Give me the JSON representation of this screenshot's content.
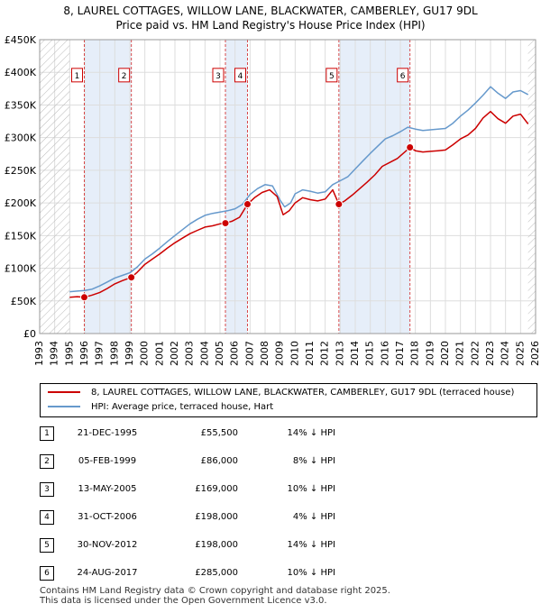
{
  "title": {
    "line1": "8, LAUREL COTTAGES, WILLOW LANE, BLACKWATER, CAMBERLEY, GU17 9DL",
    "line2": "Price paid vs. HM Land Registry's House Price Index (HPI)"
  },
  "chart_data": {
    "type": "line",
    "title": "8, LAUREL COTTAGES, WILLOW LANE, BLACKWATER, CAMBERLEY, GU17 9DL - Price paid vs. HM Land Registry's House Price Index (HPI)",
    "xlabel": "",
    "ylabel": "",
    "xlim": [
      1993,
      2026
    ],
    "ylim": [
      0,
      450000
    ],
    "yticks": [
      0,
      50000,
      100000,
      150000,
      200000,
      250000,
      300000,
      350000,
      400000,
      450000
    ],
    "ytick_labels": [
      "£0",
      "£50K",
      "£100K",
      "£150K",
      "£200K",
      "£250K",
      "£300K",
      "£350K",
      "£400K",
      "£450K"
    ],
    "xticks": [
      1993,
      1994,
      1995,
      1996,
      1997,
      1998,
      1999,
      2000,
      2001,
      2002,
      2003,
      2004,
      2005,
      2006,
      2007,
      2008,
      2009,
      2010,
      2011,
      2012,
      2013,
      2014,
      2015,
      2016,
      2017,
      2018,
      2019,
      2020,
      2021,
      2022,
      2023,
      2024,
      2025,
      2026
    ],
    "grid": true,
    "data_range": [
      1995.0,
      2025.5
    ],
    "series": [
      {
        "name": "8, LAUREL COTTAGES, WILLOW LANE, BLACKWATER, CAMBERLEY, GU17 9DL (terraced house)",
        "color": "#cc0000",
        "x": [
          1995.0,
          1995.5,
          1995.97,
          1996.5,
          1997.0,
          1997.5,
          1998.0,
          1998.5,
          1999.1,
          1999.5,
          2000.0,
          2000.5,
          2001.0,
          2001.5,
          2002.0,
          2002.5,
          2003.0,
          2003.5,
          2004.0,
          2004.5,
          2005.0,
          2005.36,
          2005.8,
          2006.3,
          2006.83,
          2007.3,
          2007.8,
          2008.3,
          2008.8,
          2009.2,
          2009.6,
          2010.0,
          2010.5,
          2011.0,
          2011.5,
          2012.0,
          2012.5,
          2012.91,
          2013.3,
          2013.8,
          2014.3,
          2014.8,
          2015.3,
          2015.8,
          2016.3,
          2016.8,
          2017.3,
          2017.64,
          2018.0,
          2018.5,
          2019.0,
          2019.5,
          2020.0,
          2020.5,
          2021.0,
          2021.5,
          2022.0,
          2022.5,
          2023.0,
          2023.5,
          2024.0,
          2024.5,
          2025.0,
          2025.5
        ],
        "values": [
          55500,
          56500,
          55500,
          59000,
          63000,
          69000,
          76000,
          81000,
          86000,
          94000,
          106000,
          114000,
          122000,
          131000,
          139000,
          146000,
          153000,
          158000,
          163000,
          165000,
          168000,
          169000,
          172000,
          178000,
          198000,
          208000,
          216000,
          220000,
          210000,
          182000,
          188000,
          200000,
          208000,
          205000,
          203000,
          206000,
          220000,
          198000,
          203000,
          212000,
          222000,
          232000,
          243000,
          256000,
          262000,
          268000,
          278000,
          285000,
          280000,
          278000,
          279000,
          280000,
          281000,
          289000,
          298000,
          304000,
          314000,
          330000,
          340000,
          329000,
          322000,
          333000,
          336000,
          321000
        ]
      },
      {
        "name": "HPI: Average price, terraced house, Hart",
        "color": "#6699cc",
        "x": [
          1995.0,
          1995.5,
          1996.0,
          1996.5,
          1997.0,
          1997.5,
          1998.0,
          1998.5,
          1999.0,
          1999.5,
          2000.0,
          2000.5,
          2001.0,
          2001.5,
          2002.0,
          2002.5,
          2003.0,
          2003.5,
          2004.0,
          2004.5,
          2005.0,
          2005.5,
          2006.0,
          2006.5,
          2007.0,
          2007.5,
          2008.0,
          2008.5,
          2009.0,
          2009.3,
          2009.7,
          2010.0,
          2010.5,
          2011.0,
          2011.5,
          2012.0,
          2012.5,
          2013.0,
          2013.5,
          2014.0,
          2014.5,
          2015.0,
          2015.5,
          2016.0,
          2016.5,
          2017.0,
          2017.5,
          2018.0,
          2018.5,
          2019.0,
          2019.5,
          2020.0,
          2020.5,
          2021.0,
          2021.5,
          2022.0,
          2022.5,
          2023.0,
          2023.5,
          2024.0,
          2024.5,
          2025.0,
          2025.5
        ],
        "values": [
          64000,
          65000,
          66000,
          68000,
          73000,
          79000,
          85000,
          89000,
          93000,
          102000,
          114000,
          122000,
          131000,
          141000,
          150000,
          159000,
          168000,
          175000,
          181000,
          184000,
          186000,
          188000,
          191000,
          198000,
          213000,
          222000,
          228000,
          226000,
          204000,
          194000,
          200000,
          214000,
          220000,
          218000,
          215000,
          217000,
          228000,
          234000,
          240000,
          252000,
          264000,
          276000,
          287000,
          298000,
          303000,
          309000,
          316000,
          313000,
          311000,
          312000,
          313000,
          314000,
          322000,
          333000,
          342000,
          353000,
          365000,
          378000,
          368000,
          360000,
          370000,
          372000,
          366000
        ]
      }
    ],
    "sales": [
      {
        "label": "1",
        "date": "21-DEC-1995",
        "x": 1995.97,
        "price": 55500,
        "price_label": "£55,500",
        "hpi": "14% ↓ HPI"
      },
      {
        "label": "2",
        "date": "05-FEB-1999",
        "x": 1999.1,
        "price": 86000,
        "price_label": "£86,000",
        "hpi": "8% ↓ HPI"
      },
      {
        "label": "3",
        "date": "13-MAY-2005",
        "x": 2005.36,
        "price": 169000,
        "price_label": "£169,000",
        "hpi": "10% ↓ HPI"
      },
      {
        "label": "4",
        "date": "31-OCT-2006",
        "x": 2006.83,
        "price": 198000,
        "price_label": "£198,000",
        "hpi": "4% ↓ HPI"
      },
      {
        "label": "5",
        "date": "30-NOV-2012",
        "x": 2012.91,
        "price": 198000,
        "price_label": "£198,000",
        "hpi": "14% ↓ HPI"
      },
      {
        "label": "6",
        "date": "24-AUG-2017",
        "x": 2017.64,
        "price": 285000,
        "price_label": "£285,000",
        "hpi": "10% ↓ HPI"
      }
    ],
    "shaded_intervals": [
      [
        1995.97,
        1999.1
      ],
      [
        2005.36,
        2006.83
      ],
      [
        2012.91,
        2017.64
      ]
    ]
  },
  "legend": {
    "property_label": "8, LAUREL COTTAGES, WILLOW LANE, BLACKWATER, CAMBERLEY, GU17 9DL (terraced house)",
    "hpi_label": "HPI: Average price, terraced house, Hart"
  },
  "footer": {
    "line1": "Contains HM Land Registry data © Crown copyright and database right 2025.",
    "line2": "This data is licensed under the Open Government Licence v3.0."
  }
}
